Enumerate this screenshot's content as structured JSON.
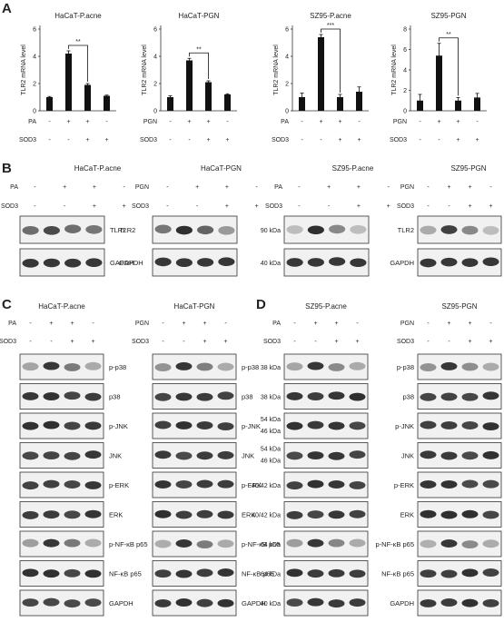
{
  "panel_labels": {
    "a": "A",
    "b": "B",
    "c": "C",
    "d": "D"
  },
  "symbols": {
    "plus": "+",
    "minus": "-"
  },
  "chart_data": [
    {
      "type": "bar",
      "title": "HaCaT-P.acne",
      "ylabel": "TLR2 mRNA level",
      "ylim": [
        0,
        6
      ],
      "yticks": [
        0,
        2,
        4,
        6
      ],
      "categories": [
        "1",
        "2",
        "3",
        "4"
      ],
      "values": [
        1.0,
        4.2,
        1.9,
        1.1
      ],
      "errors": [
        0.05,
        0.2,
        0.1,
        0.05
      ],
      "treatments": [
        {
          "label": "PA",
          "signs": [
            "-",
            "+",
            "+",
            "-"
          ]
        },
        {
          "label": "SOD3",
          "signs": [
            "-",
            "-",
            "+",
            "+"
          ]
        }
      ],
      "significance": {
        "from": 1,
        "to": 2,
        "label": "**"
      }
    },
    {
      "type": "bar",
      "title": "HaCaT-PGN",
      "ylabel": "TLR2 mRNA level",
      "ylim": [
        0,
        6
      ],
      "yticks": [
        0,
        2,
        4,
        6
      ],
      "categories": [
        "1",
        "2",
        "3",
        "4"
      ],
      "values": [
        1.0,
        3.7,
        2.1,
        1.2
      ],
      "errors": [
        0.1,
        0.15,
        0.1,
        0.05
      ],
      "treatments": [
        {
          "label": "PGN",
          "signs": [
            "-",
            "+",
            "+",
            "-"
          ]
        },
        {
          "label": "SOD3",
          "signs": [
            "-",
            "-",
            "+",
            "+"
          ]
        }
      ],
      "significance": {
        "from": 1,
        "to": 2,
        "label": "**"
      }
    },
    {
      "type": "bar",
      "title": "SZ95-P.acne",
      "ylabel": "TLR2 mRNA level",
      "ylim": [
        0,
        6
      ],
      "yticks": [
        0,
        2,
        4,
        6
      ],
      "categories": [
        "1",
        "2",
        "3",
        "4"
      ],
      "values": [
        1.0,
        5.4,
        1.0,
        1.4
      ],
      "errors": [
        0.3,
        0.2,
        0.2,
        0.35
      ],
      "treatments": [
        {
          "label": "PA",
          "signs": [
            "-",
            "+",
            "+",
            "-"
          ]
        },
        {
          "label": "SOD3",
          "signs": [
            "-",
            "-",
            "+",
            "+"
          ]
        }
      ],
      "significance": {
        "from": 1,
        "to": 2,
        "label": "***"
      }
    },
    {
      "type": "bar",
      "title": "SZ95-PGN",
      "ylabel": "TLR2 mRNA level",
      "ylim": [
        0,
        8
      ],
      "yticks": [
        0,
        2,
        4,
        6,
        8
      ],
      "categories": [
        "1",
        "2",
        "3",
        "4"
      ],
      "values": [
        1.0,
        5.4,
        1.0,
        1.3
      ],
      "errors": [
        0.6,
        1.2,
        0.3,
        0.4
      ],
      "treatments": [
        {
          "label": "PGN",
          "signs": [
            "-",
            "+",
            "+",
            "-"
          ]
        },
        {
          "label": "SOD3",
          "signs": [
            "-",
            "-",
            "+",
            "+"
          ]
        }
      ],
      "significance": {
        "from": 1,
        "to": 2,
        "label": "**"
      }
    }
  ],
  "panel_b": [
    {
      "title": "HaCaT-P.acne",
      "treat": "PA",
      "blots": [
        {
          "label": "TLR2"
        },
        {
          "label": "GAPDH"
        }
      ]
    },
    {
      "title": "HaCaT-PGN",
      "treat": "PGN",
      "blots": [
        {
          "label": ""
        },
        {
          "label": ""
        }
      ]
    },
    {
      "title": "SZ95-P.acne",
      "treat": "PA",
      "blots": [
        {
          "marker": "90 kDa"
        },
        {
          "marker": "40 kDa"
        }
      ]
    },
    {
      "title": "SZ95-PGN",
      "treat": "PGN",
      "blots": [
        {
          "label": "TLR2"
        },
        {
          "label": "GAPDH"
        }
      ]
    }
  ],
  "panel_c": [
    {
      "title": "HaCaT-P.acne",
      "treat": "PA"
    },
    {
      "title": "HaCaT-PGN",
      "treat": "PGN"
    }
  ],
  "panel_d": [
    {
      "title": "SZ95-P.acne",
      "treat": "PA"
    },
    {
      "title": "SZ95-PGN",
      "treat": "PGN"
    }
  ],
  "cd_labels": [
    "p-p38",
    "p38",
    "p-JNK",
    "JNK",
    "p-ERK",
    "ERK",
    "p-NF-κB p65",
    "NF-κB p65",
    "GAPDH"
  ],
  "d_markers": [
    "38 kDa",
    "38 kDa",
    "54 kDa|46 kDa",
    "54 kDa|46 kDa",
    "40/42 kDa",
    "40/42 kDa",
    "64 kDa",
    "64 kDa",
    "40 kDa"
  ],
  "sod3_label": "SOD3",
  "signs_treat": [
    "-",
    "+",
    "+",
    "-"
  ],
  "signs_sod3": [
    "-",
    "-",
    "+",
    "+"
  ]
}
